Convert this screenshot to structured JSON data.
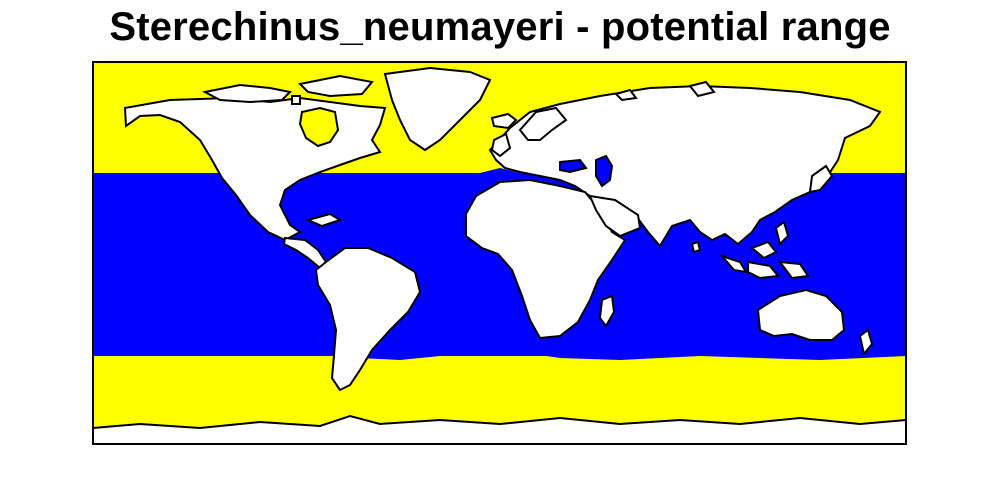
{
  "title": "Sterechinus_neumayeri - potential range",
  "colors": {
    "background": "#ffffff",
    "habitat_high_latitude": "#ffff00",
    "habitat_mid_latitude": "#0000ff",
    "land": "#ffffff",
    "outline": "#000000"
  }
}
